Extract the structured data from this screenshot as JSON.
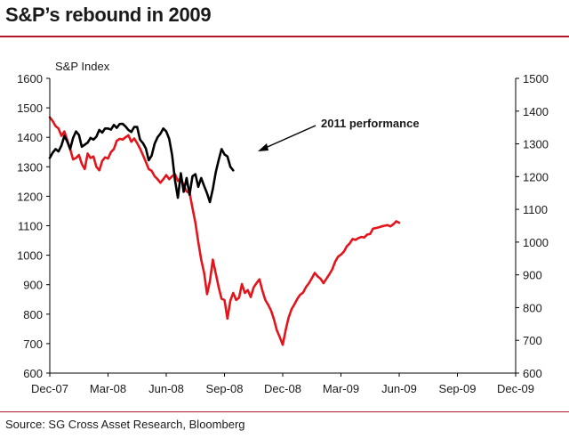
{
  "title": "S&P’s rebound in 2009",
  "source": "Source: SG Cross Asset Research, Bloomberg",
  "chart_data": {
    "type": "line",
    "title": "S&P’s rebound in 2009",
    "ylabel": "S&P Index",
    "x_tick_labels": [
      "Dec-07",
      "Mar-08",
      "Jun-08",
      "Sep-08",
      "Dec-08",
      "Mar-09",
      "Jun-09",
      "Sep-09",
      "Dec-09"
    ],
    "ylim_left": [
      600,
      1600
    ],
    "ylim_right": [
      600,
      1500
    ],
    "yticks_left": [
      "600",
      "700",
      "800",
      "900",
      "1000",
      "1100",
      "1200",
      "1300",
      "1400",
      "1500",
      "1600"
    ],
    "yticks_right": [
      "600",
      "700",
      "800",
      "900",
      "1000",
      "1100",
      "1200",
      "1300",
      "1400",
      "1500"
    ],
    "grid": false,
    "annotation": "2011 performance",
    "series": [
      {
        "axis": "left",
        "color": "#e3141b",
        "points": [
          [
            0.0,
            1468
          ],
          [
            0.05,
            1455
          ],
          [
            0.1,
            1438
          ],
          [
            0.15,
            1430
          ],
          [
            0.2,
            1405
          ],
          [
            0.25,
            1420
          ],
          [
            0.3,
            1390
          ],
          [
            0.35,
            1360
          ],
          [
            0.4,
            1325
          ],
          [
            0.45,
            1330
          ],
          [
            0.5,
            1340
          ],
          [
            0.55,
            1310
          ],
          [
            0.6,
            1292
          ],
          [
            0.65,
            1345
          ],
          [
            0.7,
            1330
          ],
          [
            0.75,
            1335
          ],
          [
            0.8,
            1300
          ],
          [
            0.85,
            1288
          ],
          [
            0.9,
            1320
          ],
          [
            0.95,
            1332
          ],
          [
            1.0,
            1328
          ],
          [
            1.05,
            1350
          ],
          [
            1.1,
            1360
          ],
          [
            1.15,
            1388
          ],
          [
            1.2,
            1395
          ],
          [
            1.25,
            1392
          ],
          [
            1.3,
            1400
          ],
          [
            1.35,
            1407
          ],
          [
            1.4,
            1385
          ],
          [
            1.45,
            1396
          ],
          [
            1.5,
            1380
          ],
          [
            1.55,
            1362
          ],
          [
            1.6,
            1340
          ],
          [
            1.65,
            1316
          ],
          [
            1.7,
            1292
          ],
          [
            1.75,
            1286
          ],
          [
            1.8,
            1268
          ],
          [
            1.85,
            1258
          ],
          [
            1.9,
            1246
          ],
          [
            1.95,
            1258
          ],
          [
            2.0,
            1272
          ],
          [
            2.05,
            1258
          ],
          [
            2.1,
            1268
          ],
          [
            2.15,
            1275
          ],
          [
            2.2,
            1252
          ],
          [
            2.25,
            1262
          ],
          [
            2.3,
            1236
          ],
          [
            2.35,
            1216
          ],
          [
            2.4,
            1212
          ],
          [
            2.45,
            1160
          ],
          [
            2.5,
            1110
          ],
          [
            2.55,
            1045
          ],
          [
            2.6,
            985
          ],
          [
            2.65,
            940
          ],
          [
            2.7,
            868
          ],
          [
            2.75,
            912
          ],
          [
            2.8,
            985
          ],
          [
            2.85,
            938
          ],
          [
            2.9,
            892
          ],
          [
            2.95,
            852
          ],
          [
            3.0,
            848
          ],
          [
            3.05,
            785
          ],
          [
            3.1,
            846
          ],
          [
            3.15,
            872
          ],
          [
            3.2,
            848
          ],
          [
            3.25,
            856
          ],
          [
            3.3,
            902
          ],
          [
            3.35,
            872
          ],
          [
            3.4,
            882
          ],
          [
            3.45,
            858
          ],
          [
            3.5,
            891
          ],
          [
            3.55,
            905
          ],
          [
            3.6,
            918
          ],
          [
            3.65,
            880
          ],
          [
            3.7,
            848
          ],
          [
            3.75,
            832
          ],
          [
            3.8,
            812
          ],
          [
            3.85,
            782
          ],
          [
            3.9,
            745
          ],
          [
            3.95,
            722
          ],
          [
            4.0,
            696
          ],
          [
            4.05,
            746
          ],
          [
            4.1,
            787
          ],
          [
            4.15,
            816
          ],
          [
            4.2,
            833
          ],
          [
            4.25,
            852
          ],
          [
            4.3,
            866
          ],
          [
            4.35,
            873
          ],
          [
            4.4,
            892
          ],
          [
            4.45,
            905
          ],
          [
            4.5,
            922
          ],
          [
            4.55,
            940
          ],
          [
            4.6,
            928
          ],
          [
            4.65,
            920
          ],
          [
            4.7,
            905
          ],
          [
            4.75,
            920
          ],
          [
            4.8,
            935
          ],
          [
            4.85,
            952
          ],
          [
            4.9,
            978
          ],
          [
            4.95,
            995
          ],
          [
            5.0,
            1002
          ],
          [
            5.05,
            1012
          ],
          [
            5.1,
            1030
          ],
          [
            5.15,
            1040
          ],
          [
            5.2,
            1055
          ],
          [
            5.25,
            1052
          ],
          [
            5.3,
            1058
          ],
          [
            5.35,
            1062
          ],
          [
            5.4,
            1060
          ],
          [
            5.45,
            1070
          ],
          [
            5.5,
            1072
          ],
          [
            5.55,
            1090
          ],
          [
            5.6,
            1092
          ],
          [
            5.65,
            1095
          ],
          [
            5.7,
            1098
          ],
          [
            5.75,
            1100
          ],
          [
            5.8,
            1102
          ],
          [
            5.85,
            1098
          ],
          [
            5.9,
            1105
          ],
          [
            5.95,
            1115
          ],
          [
            6.0,
            1110
          ]
        ]
      },
      {
        "axis": "left",
        "color": "#000000",
        "points": [
          [
            0.0,
            1330
          ],
          [
            0.05,
            1348
          ],
          [
            0.1,
            1360
          ],
          [
            0.15,
            1352
          ],
          [
            0.2,
            1372
          ],
          [
            0.25,
            1405
          ],
          [
            0.3,
            1385
          ],
          [
            0.35,
            1360
          ],
          [
            0.4,
            1398
          ],
          [
            0.45,
            1420
          ],
          [
            0.5,
            1408
          ],
          [
            0.55,
            1368
          ],
          [
            0.6,
            1375
          ],
          [
            0.65,
            1382
          ],
          [
            0.7,
            1398
          ],
          [
            0.75,
            1392
          ],
          [
            0.8,
            1402
          ],
          [
            0.85,
            1425
          ],
          [
            0.9,
            1416
          ],
          [
            0.95,
            1430
          ],
          [
            1.0,
            1430
          ],
          [
            1.05,
            1426
          ],
          [
            1.1,
            1442
          ],
          [
            1.15,
            1432
          ],
          [
            1.2,
            1445
          ],
          [
            1.25,
            1446
          ],
          [
            1.3,
            1437
          ],
          [
            1.35,
            1425
          ],
          [
            1.4,
            1418
          ],
          [
            1.45,
            1435
          ],
          [
            1.5,
            1435
          ],
          [
            1.55,
            1392
          ],
          [
            1.6,
            1380
          ],
          [
            1.65,
            1362
          ],
          [
            1.7,
            1322
          ],
          [
            1.75,
            1338
          ],
          [
            1.8,
            1378
          ],
          [
            1.85,
            1400
          ],
          [
            1.9,
            1412
          ],
          [
            1.95,
            1430
          ],
          [
            2.0,
            1420
          ],
          [
            2.05,
            1395
          ],
          [
            2.1,
            1340
          ],
          [
            2.15,
            1255
          ],
          [
            2.2,
            1195
          ],
          [
            2.25,
            1278
          ],
          [
            2.3,
            1215
          ],
          [
            2.35,
            1262
          ],
          [
            2.4,
            1205
          ],
          [
            2.45,
            1268
          ],
          [
            2.5,
            1275
          ],
          [
            2.55,
            1232
          ],
          [
            2.6,
            1262
          ],
          [
            2.65,
            1235
          ],
          [
            2.7,
            1210
          ],
          [
            2.75,
            1180
          ],
          [
            2.8,
            1225
          ],
          [
            2.85,
            1282
          ],
          [
            2.9,
            1322
          ],
          [
            2.95,
            1360
          ],
          [
            3.0,
            1342
          ],
          [
            3.05,
            1335
          ],
          [
            3.1,
            1300
          ],
          [
            3.15,
            1288
          ]
        ]
      }
    ]
  }
}
